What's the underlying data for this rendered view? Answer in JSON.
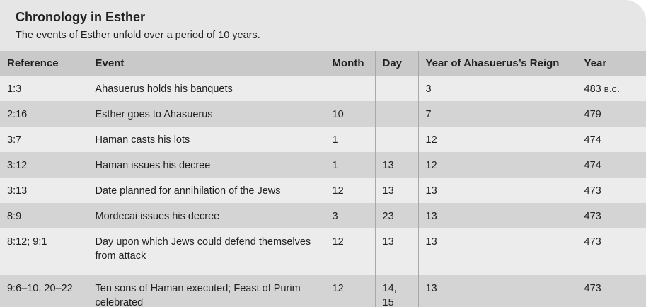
{
  "header": {
    "title": "Chronology in Esther",
    "subtitle": "The events of Esther unfold over a period of 10 years."
  },
  "table": {
    "columns": [
      "Reference",
      "Event",
      "Month",
      "Day",
      "Year of Ahasuerus’s Reign",
      "Year"
    ],
    "rows": [
      {
        "ref": "1:3",
        "event": "Ahasuerus holds his banquets",
        "month": "",
        "day": "",
        "reign": "3",
        "year": "483",
        "era": "B.C."
      },
      {
        "ref": "2:16",
        "event": "Esther goes to Ahasuerus",
        "month": "10",
        "day": "",
        "reign": "7",
        "year": "479"
      },
      {
        "ref": "3:7",
        "event": "Haman casts his lots",
        "month": "1",
        "day": "",
        "reign": "12",
        "year": "474"
      },
      {
        "ref": "3:12",
        "event": "Haman issues his decree",
        "month": "1",
        "day": "13",
        "reign": "12",
        "year": "474"
      },
      {
        "ref": "3:13",
        "event": "Date planned for annihilation of the Jews",
        "month": "12",
        "day": "13",
        "reign": "13",
        "year": "473"
      },
      {
        "ref": "8:9",
        "event": "Mordecai issues his decree",
        "month": "3",
        "day": "23",
        "reign": "13",
        "year": "473"
      },
      {
        "ref": "8:12; 9:1",
        "event": "Day upon which Jews could defend themselves from attack",
        "month": "12",
        "day": "13",
        "reign": "13",
        "year": "473"
      },
      {
        "ref": "9:6–10, 20–22",
        "event": "Ten sons of Haman executed; Feast of Purim celebrated",
        "month": "12",
        "day": "14, 15",
        "reign": "13",
        "year": "473"
      }
    ]
  }
}
